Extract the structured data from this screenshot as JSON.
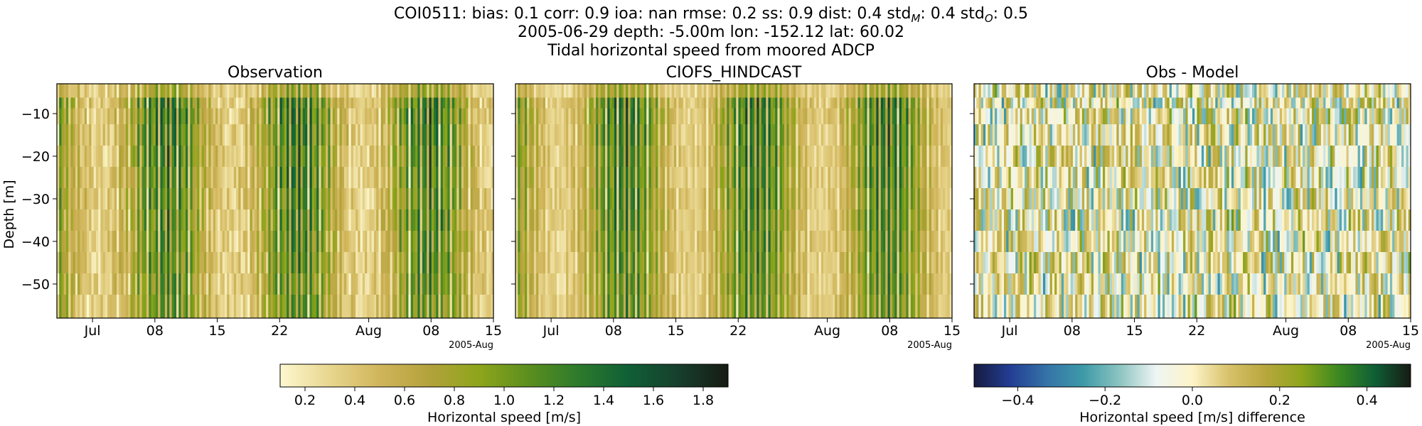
{
  "header": {
    "stats_segments": [
      {
        "label": "COI0511: bias:",
        "value": "0.1"
      },
      {
        "label": "corr:",
        "value": "0.9"
      },
      {
        "label": "ioa:",
        "value": "nan"
      },
      {
        "label": "rmse:",
        "value": "0.2"
      },
      {
        "label": "ss:",
        "value": "0.9"
      },
      {
        "label": "dist:",
        "value": "0.4"
      },
      {
        "label": "std",
        "subscript": "M",
        "value": "0.4"
      },
      {
        "label": "std",
        "subscript": "O",
        "value": "0.5"
      }
    ],
    "location_line": "2005-06-29 depth: -5.00m lon: -152.12 lat: 60.02",
    "title_line": "Tidal horizontal speed from moored ADCP"
  },
  "chart_data": [
    {
      "type": "heatmap",
      "title": "Observation",
      "ylabel": "Depth [m]",
      "ylim": [
        -58,
        -3
      ],
      "yticks": [
        -10,
        -20,
        -30,
        -40,
        -50
      ],
      "ytick_labels": [
        "−10",
        "−20",
        "−30",
        "−40",
        "−50"
      ],
      "xlim": [
        "2005-06-27",
        "2005-08-15"
      ],
      "xtick_labels": [
        "Jul",
        "08",
        "15",
        "22",
        "Aug",
        "08",
        "15"
      ],
      "xtick_dates": [
        "2005-07-01",
        "2005-07-08",
        "2005-07-15",
        "2005-07-22",
        "2005-08-01",
        "2005-08-08",
        "2005-08-15"
      ],
      "offset_label": "2005-Aug",
      "value_range": [
        0.1,
        1.9
      ],
      "colormap": "speed",
      "time_columns": 190,
      "depth_bins": [
        -5,
        -7.5,
        -10,
        -15,
        -20,
        -25,
        -30,
        -35,
        -40,
        -45,
        -50,
        -55
      ],
      "spring_tide_peak": "2005-07-24",
      "neap_tide_low": "2005-08-02"
    },
    {
      "type": "heatmap",
      "title": "CIOFS_HINDCAST",
      "ylim": [
        -58,
        -3
      ],
      "xlim": [
        "2005-06-27",
        "2005-08-15"
      ],
      "xtick_labels": [
        "Jul",
        "08",
        "15",
        "22",
        "Aug",
        "08",
        "15"
      ],
      "xtick_dates": [
        "2005-07-01",
        "2005-07-08",
        "2005-07-15",
        "2005-07-22",
        "2005-08-01",
        "2005-08-08",
        "2005-08-15"
      ],
      "offset_label": "2005-Aug",
      "value_range": [
        0.1,
        1.9
      ],
      "colormap": "speed",
      "time_columns": 190,
      "depth_bins": [
        -5,
        -7.5,
        -10,
        -15,
        -20,
        -25,
        -30,
        -35,
        -40,
        -45,
        -50,
        -55
      ]
    },
    {
      "type": "heatmap",
      "title": "Obs - Model",
      "ylim": [
        -58,
        -3
      ],
      "xlim": [
        "2005-06-27",
        "2005-08-15"
      ],
      "xtick_labels": [
        "Jul",
        "08",
        "15",
        "22",
        "Aug",
        "08",
        "15"
      ],
      "xtick_dates": [
        "2005-07-01",
        "2005-07-08",
        "2005-07-15",
        "2005-07-22",
        "2005-08-01",
        "2005-08-08",
        "2005-08-15"
      ],
      "offset_label": "2005-Aug",
      "value_range": [
        -0.5,
        0.5
      ],
      "colormap": "diverging",
      "time_columns": 190,
      "depth_bins": [
        -5,
        -7.5,
        -10,
        -15,
        -20,
        -25,
        -30,
        -35,
        -40,
        -45,
        -50,
        -55
      ]
    }
  ],
  "colorbars": [
    {
      "label": "Horizontal speed [m/s]",
      "range": [
        0.1,
        1.9
      ],
      "ticks": [
        0.2,
        0.4,
        0.6,
        0.8,
        1.0,
        1.2,
        1.4,
        1.6,
        1.8
      ],
      "tick_labels": [
        "0.2",
        "0.4",
        "0.6",
        "0.8",
        "1.0",
        "1.2",
        "1.4",
        "1.6",
        "1.8"
      ]
    },
    {
      "label": "Horizontal speed [m/s] difference",
      "range": [
        -0.5,
        0.5
      ],
      "ticks": [
        -0.4,
        -0.2,
        0.0,
        0.2,
        0.4
      ],
      "tick_labels": [
        "−0.4",
        "−0.2",
        "0.0",
        "0.2",
        "0.4"
      ]
    }
  ],
  "colors": {
    "speed": [
      "#fdf8d0",
      "#e8d68e",
      "#d0b55b",
      "#b3a23b",
      "#8ea51b",
      "#5b8e1f",
      "#2d7a2c",
      "#0f5f36",
      "#173f2d",
      "#161b13"
    ],
    "diverging": [
      "#161b3f",
      "#233e94",
      "#3573a8",
      "#3d9aa8",
      "#8cc4c1",
      "#eef5f3",
      "#fdf4c8",
      "#d8c26b",
      "#b8a73d",
      "#8ea51b",
      "#3d8a1f",
      "#0f5f36",
      "#161b13"
    ]
  }
}
